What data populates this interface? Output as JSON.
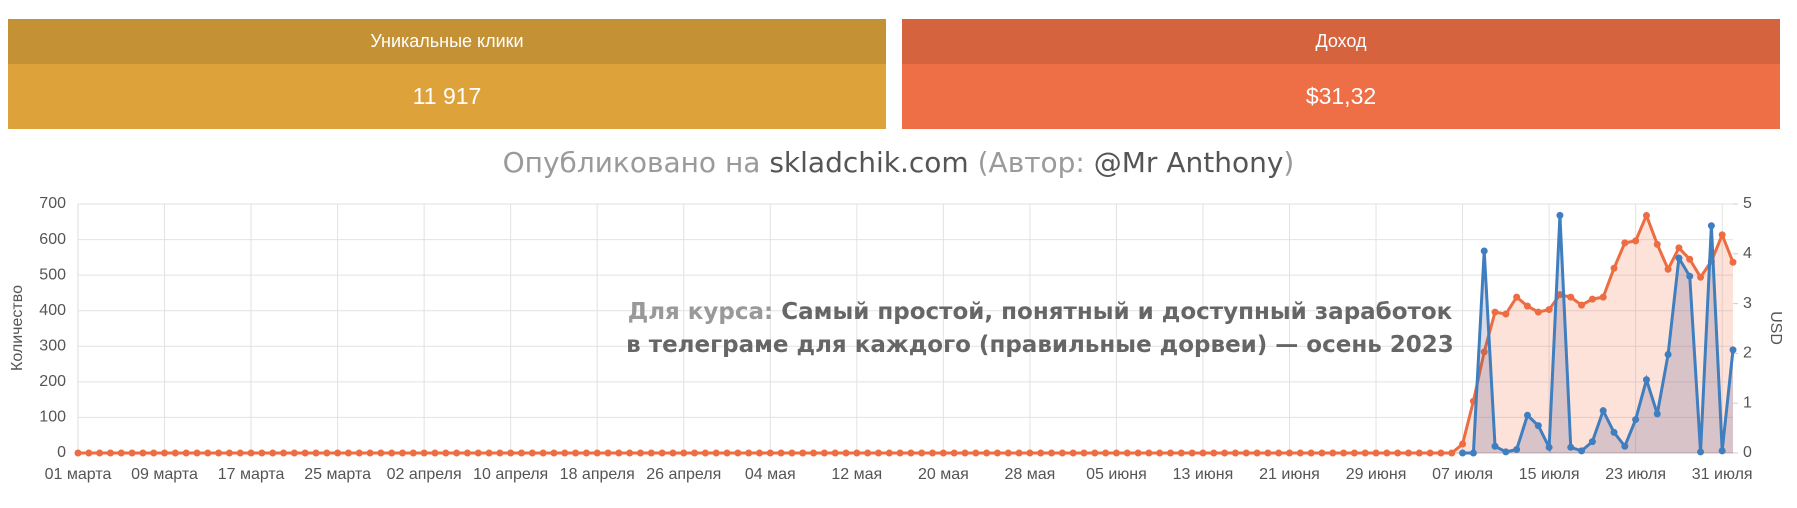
{
  "cards": [
    {
      "title": "Уникальные клики",
      "value": "11 917",
      "header_color": "#c49235",
      "color": "#dea23b"
    },
    {
      "title": "Доход",
      "value": "$31,32",
      "header_color": "#d5633e",
      "color": "#ee6e46"
    }
  ],
  "watermark": [
    "Опубликовано на",
    "skladchik.com",
    "(Автор:",
    "@Mr Anthony",
    ")"
  ],
  "annotation": {
    "label": "Для курса:",
    "lines": [
      "Самый простой, понятный и доступный заработок",
      "в телеграме для каждого (правильные дорвеи) — осень 2023"
    ]
  },
  "chart_data": {
    "type": "line",
    "y_label": "Количество",
    "y2_label": "USD",
    "grid": true,
    "ylim": [
      0,
      700
    ],
    "yticks": [
      0,
      100,
      200,
      300,
      400,
      500,
      600,
      700
    ],
    "y2lim": [
      0,
      5
    ],
    "y2ticks": [
      0,
      1,
      2,
      3,
      4,
      5
    ],
    "categories": [
      "01 марта",
      null,
      null,
      null,
      null,
      null,
      null,
      null,
      "09 марта",
      null,
      null,
      null,
      null,
      null,
      null,
      null,
      "17 марта",
      null,
      null,
      null,
      null,
      null,
      null,
      null,
      "25 марта",
      null,
      null,
      null,
      null,
      null,
      null,
      null,
      "02 апреля",
      null,
      null,
      null,
      null,
      null,
      null,
      null,
      "10 апреля",
      null,
      null,
      null,
      null,
      null,
      null,
      null,
      "18 апреля",
      null,
      null,
      null,
      null,
      null,
      null,
      null,
      "26 апреля",
      null,
      null,
      null,
      null,
      null,
      null,
      null,
      "04 мая",
      null,
      null,
      null,
      null,
      null,
      null,
      null,
      "12 мая",
      null,
      null,
      null,
      null,
      null,
      null,
      null,
      "20 мая",
      null,
      null,
      null,
      null,
      null,
      null,
      null,
      "28 мая",
      null,
      null,
      null,
      null,
      null,
      null,
      null,
      "05 июня",
      null,
      null,
      null,
      null,
      null,
      null,
      null,
      "13 июня",
      null,
      null,
      null,
      null,
      null,
      null,
      null,
      "21 июня",
      null,
      null,
      null,
      null,
      null,
      null,
      null,
      "29 июня",
      null,
      null,
      null,
      null,
      null,
      null,
      null,
      "07 июля",
      null,
      null,
      null,
      null,
      null,
      null,
      null,
      "15 июля",
      null,
      null,
      null,
      null,
      null,
      null,
      null,
      "23 июля",
      null,
      null,
      null,
      null,
      null,
      null,
      null,
      "31 июля",
      null
    ],
    "series": [
      {
        "color": "#ee6c41",
        "fill": "rgba(238,108,65,0.2)",
        "axis": "y2",
        "values": [
          0,
          0,
          0,
          0,
          0,
          0,
          0,
          0,
          0,
          0,
          0,
          0,
          0,
          0,
          0,
          0,
          0,
          0,
          0,
          0,
          0,
          0,
          0,
          0,
          0,
          0,
          0,
          0,
          0,
          0,
          0,
          0,
          0,
          0,
          0,
          0,
          0,
          0,
          0,
          0,
          0,
          0,
          0,
          0,
          0,
          0,
          0,
          0,
          0,
          0,
          0,
          0,
          0,
          0,
          0,
          0,
          0,
          0,
          0,
          0,
          0,
          0,
          0,
          0,
          0,
          0,
          0,
          0,
          0,
          0,
          0,
          0,
          0,
          0,
          0,
          0,
          0,
          0,
          0,
          0,
          0,
          0,
          0,
          0,
          0,
          0,
          0,
          0,
          0,
          0,
          0,
          0,
          0,
          0,
          0,
          0,
          0,
          0,
          0,
          0,
          0,
          0,
          0,
          0,
          0,
          0,
          0,
          0,
          0,
          0,
          0,
          0,
          0,
          0,
          0,
          0,
          0,
          0,
          0,
          0,
          0,
          0,
          0,
          0,
          0,
          0,
          0,
          0,
          0.18,
          1.04,
          2.03,
          2.83,
          2.79,
          3.13,
          2.95,
          2.83,
          2.88,
          3.18,
          3.13,
          2.97,
          3.09,
          3.13,
          3.71,
          4.22,
          4.26,
          4.77,
          4.19,
          3.69,
          4.12,
          3.89,
          3.53,
          3.85,
          4.38,
          3.83
        ]
      },
      {
        "color": "#3f7ebf",
        "fill": "rgba(90,90,140,0.22)",
        "axis": "y",
        "values": [
          null,
          null,
          null,
          null,
          null,
          null,
          null,
          null,
          null,
          null,
          null,
          null,
          null,
          null,
          null,
          null,
          null,
          null,
          null,
          null,
          null,
          null,
          null,
          null,
          null,
          null,
          null,
          null,
          null,
          null,
          null,
          null,
          null,
          null,
          null,
          null,
          null,
          null,
          null,
          null,
          null,
          null,
          null,
          null,
          null,
          null,
          null,
          null,
          null,
          null,
          null,
          null,
          null,
          null,
          null,
          null,
          null,
          null,
          null,
          null,
          null,
          null,
          null,
          null,
          null,
          null,
          null,
          null,
          null,
          null,
          null,
          null,
          null,
          null,
          null,
          null,
          null,
          null,
          null,
          null,
          null,
          null,
          null,
          null,
          null,
          null,
          null,
          null,
          null,
          null,
          null,
          null,
          null,
          null,
          null,
          null,
          null,
          null,
          null,
          null,
          null,
          null,
          null,
          null,
          null,
          null,
          null,
          null,
          null,
          null,
          null,
          null,
          null,
          null,
          null,
          null,
          null,
          null,
          null,
          null,
          null,
          null,
          null,
          null,
          null,
          null,
          null,
          null,
          0,
          0,
          568,
          19,
          3,
          10,
          106,
          77,
          16,
          668,
          16,
          6,
          32,
          119,
          58,
          19,
          94,
          206,
          110,
          277,
          548,
          497,
          3,
          639,
          6,
          290
        ]
      }
    ]
  }
}
